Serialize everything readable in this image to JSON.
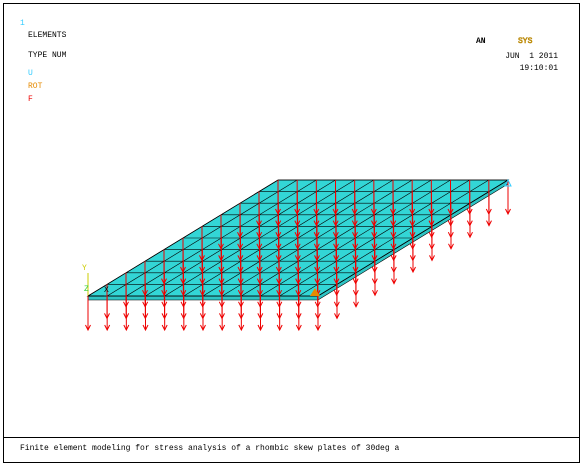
{
  "window": {
    "number": "1",
    "lines": [
      "ELEMENTS",
      "TYPE NUM"
    ],
    "legend": [
      "U",
      "ROT",
      "F"
    ],
    "logo": {
      "left": "AN",
      "right": "SYS"
    },
    "date": "JUN  1 2011",
    "time": "19:10:01",
    "axes": {
      "y": "Y",
      "z": "Z",
      "x": "X"
    },
    "caption": "Finite element modeling for stress analysis of a rhombic skew plates of 30deg a"
  }
}
